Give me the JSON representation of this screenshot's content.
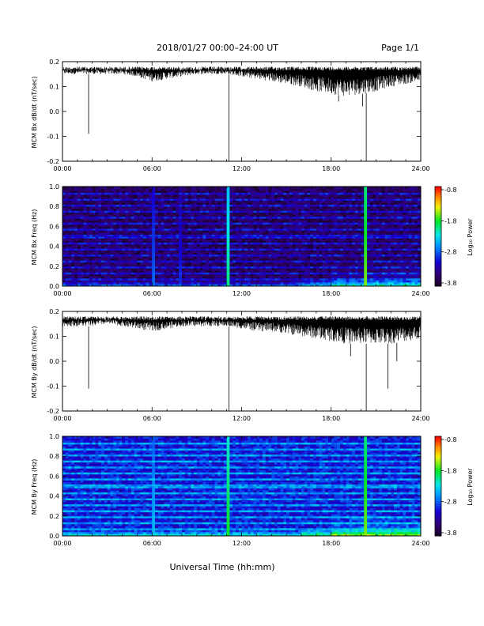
{
  "header": {
    "date_range": "2018/01/27  00:00–24:00 UT",
    "page": "Page 1/1"
  },
  "footer": {
    "xlabel": "Universal Time (hh:mm)"
  },
  "colorbar": {
    "label": "Log₁₀ Power",
    "ticks": [
      "-0.8",
      "-1.8",
      "-2.8",
      "-3.8"
    ]
  },
  "chart_data": [
    {
      "type": "line",
      "ylabel": "MCM Bx dB/dt (nT/sec)",
      "xlim": [
        0,
        24
      ],
      "ylim": [
        -0.2,
        0.2
      ],
      "xticks": [
        "00:00",
        "06:00",
        "12:00",
        "18:00",
        "24:00"
      ],
      "yticks": [
        "0.2",
        "0.1",
        "0.0",
        "-0.1",
        "-0.2"
      ],
      "x": [
        0,
        1,
        2,
        3,
        4,
        5,
        6,
        7,
        8,
        9,
        10,
        11,
        12,
        13,
        14,
        15,
        16,
        17,
        18,
        19,
        20,
        21,
        22,
        23,
        24
      ],
      "upper": [
        0.18,
        0.18,
        0.18,
        0.18,
        0.18,
        0.18,
        0.18,
        0.18,
        0.18,
        0.18,
        0.18,
        0.18,
        0.18,
        0.18,
        0.18,
        0.18,
        0.18,
        0.18,
        0.18,
        0.18,
        0.18,
        0.18,
        0.18,
        0.18,
        0.18
      ],
      "lower": [
        0.15,
        0.15,
        0.15,
        0.15,
        0.15,
        0.14,
        0.12,
        0.13,
        0.14,
        0.15,
        0.15,
        0.15,
        0.14,
        0.13,
        0.12,
        0.11,
        0.1,
        0.08,
        0.07,
        0.06,
        0.07,
        0.08,
        0.1,
        0.11,
        0.12
      ],
      "spikes": [
        {
          "x": 1.75,
          "y": -0.09
        },
        {
          "x": 11.15,
          "y": -0.2
        },
        {
          "x": 20.35,
          "y": -0.2
        },
        {
          "x": 18.5,
          "y": 0.04
        },
        {
          "x": 20.1,
          "y": 0.02
        }
      ]
    },
    {
      "type": "heatmap",
      "ylabel": "MCM Bx Freq (Hz)",
      "xlim": [
        0,
        24
      ],
      "ylim": [
        0,
        1
      ],
      "xticks": [
        "00:00",
        "06:00",
        "12:00",
        "18:00",
        "24:00"
      ],
      "yticks": [
        "1.0",
        "0.8",
        "0.6",
        "0.4",
        "0.2",
        "0.0"
      ],
      "clim": [
        -3.8,
        -0.8
      ],
      "background_level": -3.5,
      "bright_columns": [
        {
          "x": 6.1,
          "level": -2.7
        },
        {
          "x": 7.9,
          "level": -2.9
        },
        {
          "x": 11.15,
          "level": -2.0
        },
        {
          "x": 20.35,
          "level": -1.6
        }
      ],
      "harmonic_lines_hz": [
        0.0625,
        0.125,
        0.1875,
        0.25,
        0.3125,
        0.375,
        0.4375,
        0.5,
        0.5625,
        0.625,
        0.6875,
        0.75,
        0.8125,
        0.875,
        0.9375
      ]
    },
    {
      "type": "line",
      "ylabel": "MCM By dB/dt (nT/sec)",
      "xlim": [
        0,
        24
      ],
      "ylim": [
        -0.2,
        0.2
      ],
      "xticks": [
        "00:00",
        "06:00",
        "12:00",
        "18:00",
        "24:00"
      ],
      "yticks": [
        "0.2",
        "0.1",
        "0.0",
        "-0.1",
        "-0.2"
      ],
      "x": [
        0,
        1,
        2,
        3,
        4,
        5,
        6,
        7,
        8,
        9,
        10,
        11,
        12,
        13,
        14,
        15,
        16,
        17,
        18,
        19,
        20,
        21,
        22,
        23,
        24
      ],
      "upper": [
        0.18,
        0.18,
        0.18,
        0.18,
        0.18,
        0.18,
        0.18,
        0.18,
        0.18,
        0.18,
        0.18,
        0.18,
        0.18,
        0.18,
        0.18,
        0.18,
        0.18,
        0.18,
        0.18,
        0.18,
        0.18,
        0.18,
        0.18,
        0.18,
        0.18
      ],
      "lower": [
        0.14,
        0.14,
        0.14,
        0.15,
        0.14,
        0.13,
        0.12,
        0.13,
        0.14,
        0.14,
        0.14,
        0.14,
        0.13,
        0.12,
        0.12,
        0.11,
        0.1,
        0.09,
        0.08,
        0.07,
        0.07,
        0.07,
        0.07,
        0.08,
        0.09
      ],
      "spikes": [
        {
          "x": 1.75,
          "y": -0.11
        },
        {
          "x": 11.15,
          "y": -0.2
        },
        {
          "x": 20.35,
          "y": -0.2
        },
        {
          "x": 21.8,
          "y": -0.11
        },
        {
          "x": 19.3,
          "y": 0.02
        },
        {
          "x": 22.4,
          "y": 0.0
        }
      ]
    },
    {
      "type": "heatmap",
      "ylabel": "MCM By Freq (Hz)",
      "xlim": [
        0,
        24
      ],
      "ylim": [
        0,
        1
      ],
      "xticks": [
        "00:00",
        "06:00",
        "12:00",
        "18:00",
        "24:00"
      ],
      "yticks": [
        "1.0",
        "0.8",
        "0.6",
        "0.4",
        "0.2",
        "0.0"
      ],
      "clim": [
        -3.8,
        -0.8
      ],
      "background_level": -3.0,
      "bright_columns": [
        {
          "x": 6.1,
          "level": -2.4
        },
        {
          "x": 11.15,
          "level": -1.8
        },
        {
          "x": 20.35,
          "level": -1.6
        }
      ],
      "harmonic_lines_hz": [
        0.0625,
        0.125,
        0.1875,
        0.25,
        0.3125,
        0.375,
        0.4375,
        0.5,
        0.5625,
        0.625,
        0.6875,
        0.75,
        0.8125,
        0.875,
        0.9375
      ]
    }
  ]
}
